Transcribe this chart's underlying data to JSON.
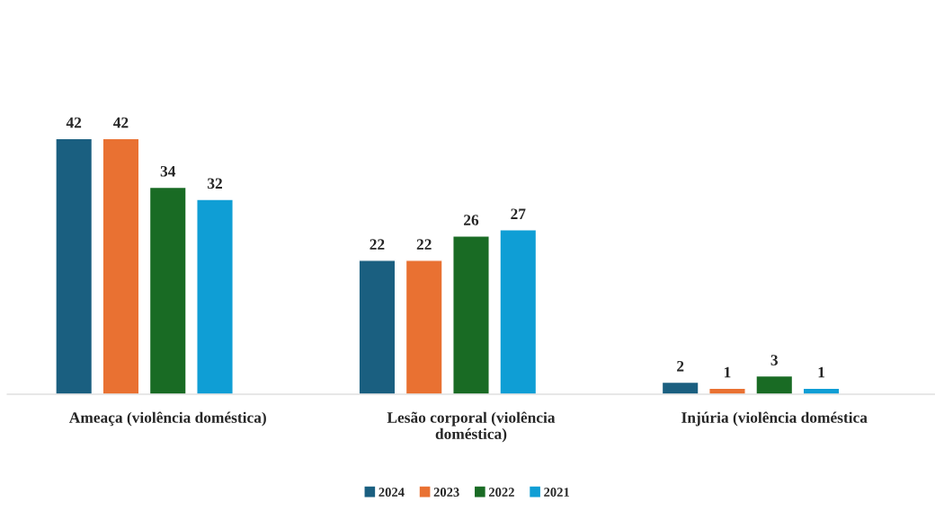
{
  "chart_data": {
    "type": "bar",
    "categories": [
      "Ameaça (violência doméstica)",
      "Lesão corporal (violência\ndoméstica)",
      "Injúria (violência doméstica"
    ],
    "series": [
      {
        "name": "2024",
        "color": "#1a5f80",
        "values": [
          42,
          22,
          2
        ]
      },
      {
        "name": "2023",
        "color": "#e97132",
        "values": [
          42,
          22,
          1
        ]
      },
      {
        "name": "2022",
        "color": "#196b24",
        "values": [
          34,
          26,
          3
        ]
      },
      {
        "name": "2021",
        "color": "#0f9ed5",
        "values": [
          32,
          27,
          1
        ]
      }
    ],
    "data_labels": true,
    "legend": "bottom",
    "grid": false
  }
}
